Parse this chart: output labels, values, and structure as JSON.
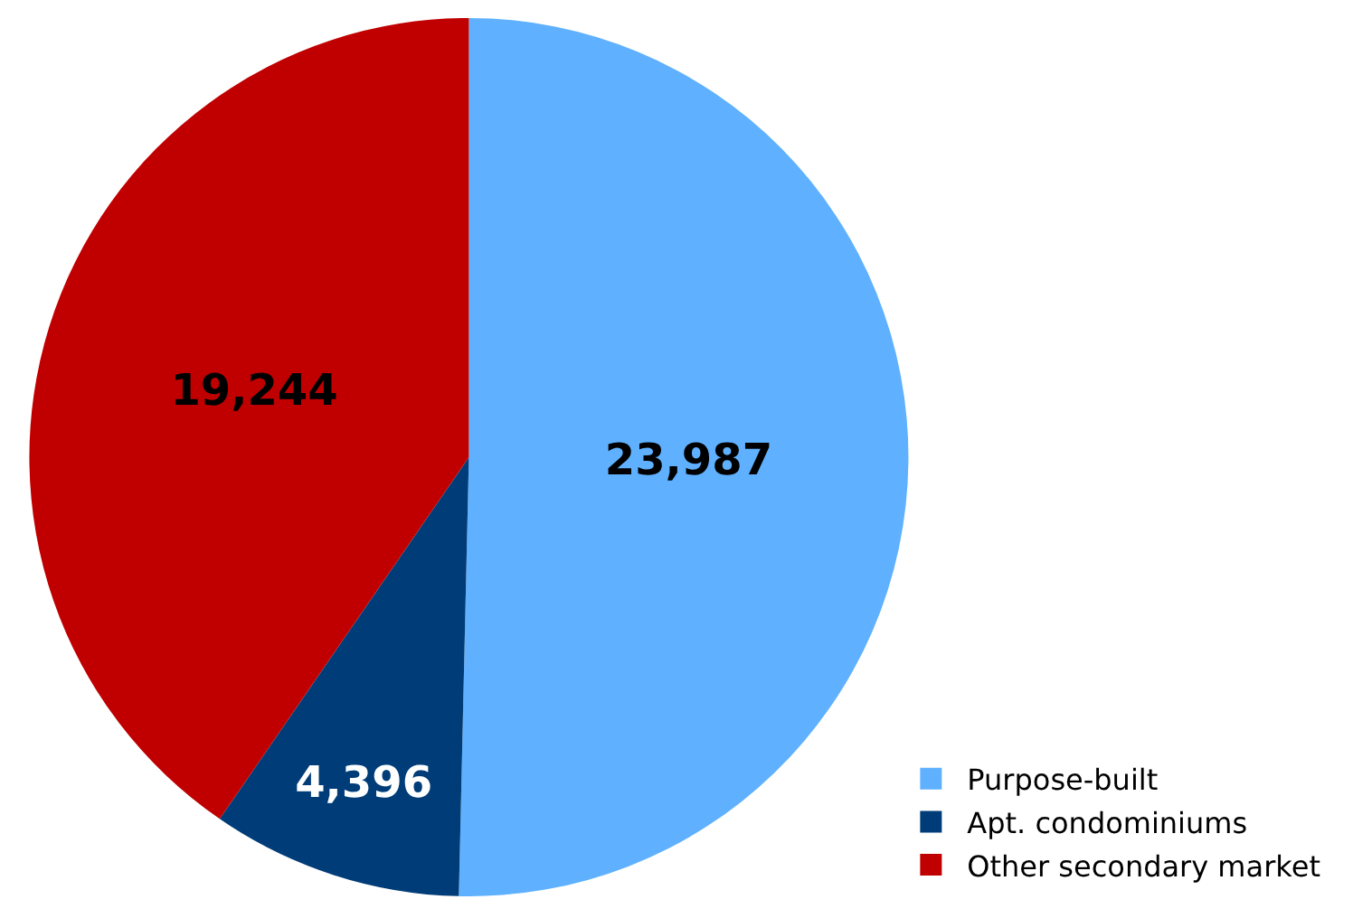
{
  "chart_data": {
    "type": "pie",
    "categories": [
      "Purpose-built",
      "Apt. condominiums",
      "Other secondary market"
    ],
    "values": [
      23987,
      4396,
      19244
    ],
    "colors": [
      "#5fb1ff",
      "#003d78",
      "#c00000"
    ],
    "value_labels": [
      "23,987",
      "4,396",
      "19,244"
    ],
    "legend": "bottom right"
  }
}
